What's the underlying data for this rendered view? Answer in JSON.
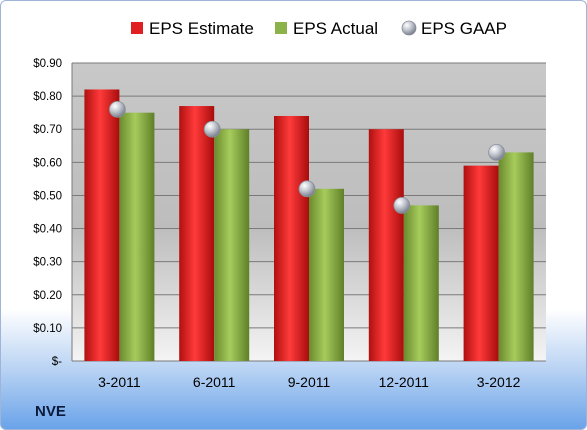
{
  "company": "NVE",
  "colors": {
    "estimate": "#e02020",
    "actual": "#8cb24a",
    "gaap": "#b8bcc4"
  },
  "chart_data": {
    "type": "bar",
    "categories": [
      "3-2011",
      "6-2011",
      "9-2011",
      "12-2011",
      "3-2012"
    ],
    "series": [
      {
        "name": "EPS Estimate",
        "values": [
          0.82,
          0.77,
          0.74,
          0.7,
          0.59
        ]
      },
      {
        "name": "EPS Actual",
        "values": [
          0.75,
          0.7,
          0.52,
          0.47,
          0.63
        ]
      }
    ],
    "markers": {
      "name": "EPS GAAP",
      "values": [
        0.76,
        0.7,
        0.52,
        0.47,
        0.63
      ]
    },
    "yticks": [
      "$-",
      "$0.10",
      "$0.20",
      "$0.30",
      "$0.40",
      "$0.50",
      "$0.60",
      "$0.70",
      "$0.80",
      "$0.90"
    ],
    "ylim": [
      0,
      0.9
    ],
    "grid": true,
    "legend": "top"
  }
}
